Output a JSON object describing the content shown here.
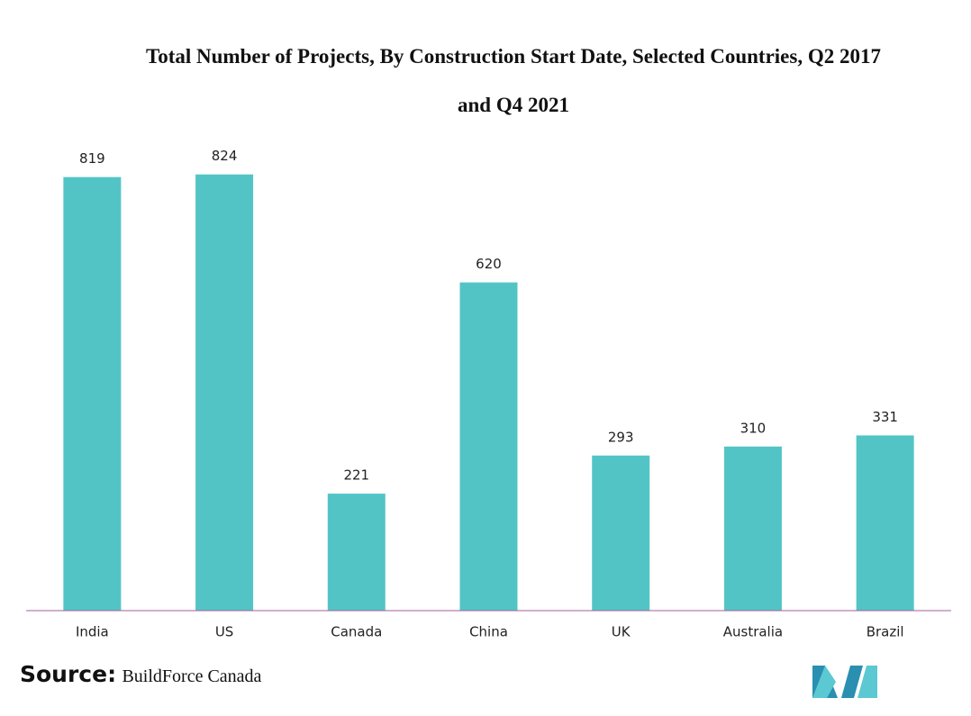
{
  "chart_data": {
    "type": "bar",
    "title": "Total Number of Projects, By Construction Start Date, Selected Countries, Q2 2017 and Q4 2021",
    "categories": [
      "India",
      "US",
      "Canada",
      "China",
      "UK",
      "Australia",
      "Brazil"
    ],
    "values": [
      819,
      824,
      221,
      620,
      293,
      310,
      331
    ],
    "color": "#53c4c6",
    "ylim": [
      0,
      900
    ],
    "source_label": "Source:",
    "source": "BuildForce Canada"
  }
}
